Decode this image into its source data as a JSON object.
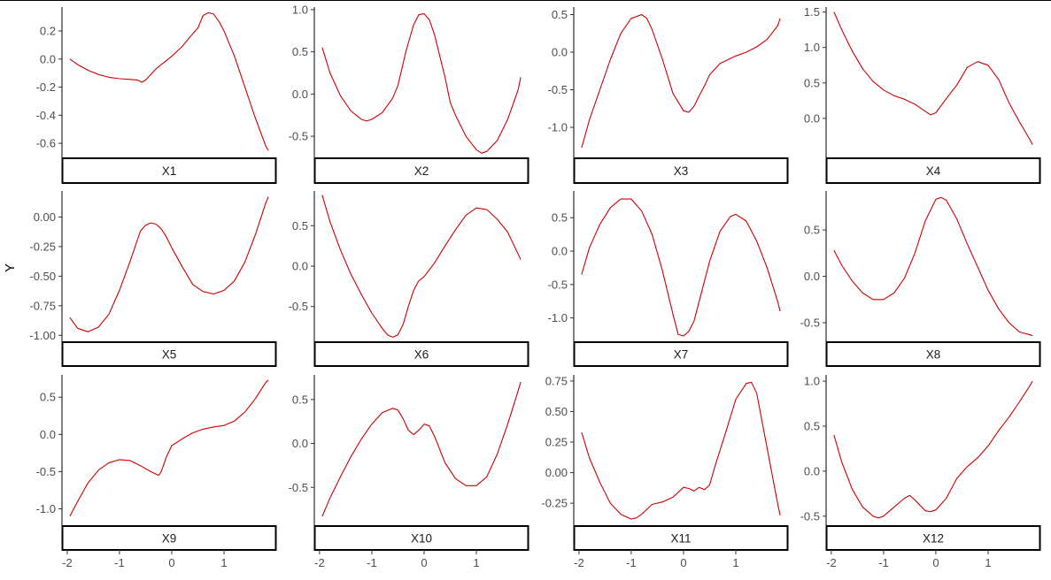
{
  "figure": {
    "ylabel": "Y",
    "line_color": "#CC0000",
    "strip_fill": "#FFFFFF",
    "strip_border": "#000000",
    "tick_color": "#4D4D4D",
    "x_ticks": [
      -2,
      -1,
      0,
      1
    ],
    "x_tick_labels": [
      "-2",
      "-1",
      "0",
      "1"
    ]
  },
  "chart_data": [
    {
      "type": "line",
      "title": "X1",
      "xlim": [
        -2.1,
        2.0
      ],
      "ylim": [
        -0.7,
        0.37
      ],
      "yticks": [
        0.2,
        0.0,
        -0.2,
        -0.4,
        -0.6
      ],
      "ytick_labels": [
        "0.2",
        "0.0",
        "-0.2",
        "-0.4",
        "-0.6"
      ],
      "x": [
        -1.95,
        -1.8,
        -1.6,
        -1.4,
        -1.2,
        -1.0,
        -0.8,
        -0.65,
        -0.57,
        -0.5,
        -0.4,
        -0.3,
        -0.2,
        -0.1,
        0.0,
        0.2,
        0.4,
        0.5,
        0.6,
        0.7,
        0.8,
        0.9,
        1.0,
        1.2,
        1.4,
        1.6,
        1.8,
        1.85
      ],
      "y": [
        0.0,
        -0.04,
        -0.08,
        -0.11,
        -0.13,
        -0.14,
        -0.145,
        -0.15,
        -0.165,
        -0.15,
        -0.11,
        -0.07,
        -0.04,
        -0.01,
        0.02,
        0.09,
        0.18,
        0.22,
        0.31,
        0.33,
        0.32,
        0.27,
        0.2,
        0.02,
        -0.2,
        -0.42,
        -0.62,
        -0.65
      ]
    },
    {
      "type": "line",
      "title": "X2",
      "xlim": [
        -2.1,
        2.0
      ],
      "ylim": [
        -0.75,
        1.03
      ],
      "yticks": [
        1.0,
        0.5,
        0.0,
        -0.5
      ],
      "ytick_labels": [
        "1.0",
        "0.5",
        "0.0",
        "-0.5"
      ],
      "x": [
        -1.95,
        -1.8,
        -1.6,
        -1.4,
        -1.2,
        -1.1,
        -1.0,
        -0.8,
        -0.6,
        -0.5,
        -0.35,
        -0.2,
        -0.1,
        0.0,
        0.1,
        0.2,
        0.4,
        0.5,
        0.6,
        0.8,
        1.0,
        1.1,
        1.2,
        1.4,
        1.6,
        1.8,
        1.85
      ],
      "y": [
        0.55,
        0.25,
        -0.02,
        -0.2,
        -0.3,
        -0.32,
        -0.3,
        -0.22,
        -0.05,
        0.1,
        0.5,
        0.82,
        0.94,
        0.95,
        0.88,
        0.7,
        0.2,
        -0.1,
        -0.25,
        -0.5,
        -0.66,
        -0.7,
        -0.68,
        -0.55,
        -0.3,
        0.05,
        0.2
      ]
    },
    {
      "type": "line",
      "title": "X3",
      "xlim": [
        -2.1,
        2.0
      ],
      "ylim": [
        -1.4,
        0.6
      ],
      "yticks": [
        0.5,
        0.0,
        -0.5,
        -1.0
      ],
      "ytick_labels": [
        "0.5",
        "0.0",
        "-0.5",
        "-1.0"
      ],
      "x": [
        -1.95,
        -1.8,
        -1.6,
        -1.4,
        -1.2,
        -1.0,
        -0.8,
        -0.7,
        -0.6,
        -0.4,
        -0.2,
        0.0,
        0.1,
        0.2,
        0.3,
        0.4,
        0.5,
        0.7,
        1.0,
        1.2,
        1.4,
        1.6,
        1.8,
        1.85
      ],
      "y": [
        -1.27,
        -0.9,
        -0.5,
        -0.1,
        0.25,
        0.45,
        0.5,
        0.45,
        0.3,
        -0.1,
        -0.55,
        -0.78,
        -0.8,
        -0.72,
        -0.58,
        -0.45,
        -0.3,
        -0.15,
        -0.05,
        0.0,
        0.07,
        0.17,
        0.35,
        0.45
      ]
    },
    {
      "type": "line",
      "title": "X4",
      "xlim": [
        -2.1,
        2.0
      ],
      "ylim": [
        -0.55,
        1.57
      ],
      "yticks": [
        1.5,
        1.0,
        0.5,
        0.0
      ],
      "ytick_labels": [
        "1.5",
        "1.0",
        "0.5",
        "0.0"
      ],
      "x": [
        -1.95,
        -1.8,
        -1.6,
        -1.4,
        -1.2,
        -1.0,
        -0.8,
        -0.6,
        -0.4,
        -0.2,
        -0.1,
        0.0,
        0.2,
        0.4,
        0.6,
        0.8,
        1.0,
        1.2,
        1.4,
        1.6,
        1.8,
        1.85
      ],
      "y": [
        1.5,
        1.25,
        0.95,
        0.7,
        0.52,
        0.4,
        0.32,
        0.27,
        0.2,
        0.1,
        0.05,
        0.08,
        0.28,
        0.47,
        0.72,
        0.8,
        0.75,
        0.55,
        0.22,
        -0.05,
        -0.3,
        -0.37
      ]
    },
    {
      "type": "line",
      "title": "X5",
      "xlim": [
        -2.1,
        2.0
      ],
      "ylim": [
        -1.05,
        0.22
      ],
      "yticks": [
        0.0,
        -0.25,
        -0.5,
        -0.75,
        -1.0
      ],
      "ytick_labels": [
        "0.00",
        "-0.25",
        "-0.50",
        "-0.75",
        "-1.00"
      ],
      "x": [
        -1.95,
        -1.8,
        -1.6,
        -1.4,
        -1.2,
        -1.0,
        -0.8,
        -0.6,
        -0.5,
        -0.4,
        -0.3,
        -0.2,
        -0.1,
        0.0,
        0.2,
        0.4,
        0.6,
        0.8,
        1.0,
        1.2,
        1.4,
        1.6,
        1.8,
        1.85
      ],
      "y": [
        -0.85,
        -0.94,
        -0.97,
        -0.93,
        -0.82,
        -0.62,
        -0.38,
        -0.12,
        -0.07,
        -0.05,
        -0.06,
        -0.1,
        -0.17,
        -0.26,
        -0.42,
        -0.57,
        -0.63,
        -0.65,
        -0.62,
        -0.54,
        -0.38,
        -0.15,
        0.12,
        0.17
      ]
    },
    {
      "type": "line",
      "title": "X6",
      "xlim": [
        -2.1,
        2.0
      ],
      "ylim": [
        -0.93,
        0.93
      ],
      "yticks": [
        0.5,
        0.0,
        -0.5
      ],
      "ytick_labels": [
        "0.5",
        "0.0",
        "-0.5"
      ],
      "x": [
        -1.95,
        -1.8,
        -1.6,
        -1.4,
        -1.2,
        -1.0,
        -0.8,
        -0.7,
        -0.6,
        -0.5,
        -0.4,
        -0.3,
        -0.2,
        -0.1,
        0.0,
        0.2,
        0.4,
        0.6,
        0.8,
        1.0,
        1.2,
        1.4,
        1.6,
        1.8,
        1.85
      ],
      "y": [
        0.88,
        0.55,
        0.2,
        -0.1,
        -0.35,
        -0.58,
        -0.77,
        -0.85,
        -0.88,
        -0.85,
        -0.72,
        -0.5,
        -0.3,
        -0.18,
        -0.13,
        0.04,
        0.25,
        0.45,
        0.63,
        0.72,
        0.7,
        0.58,
        0.42,
        0.15,
        0.08
      ]
    },
    {
      "type": "line",
      "title": "X7",
      "xlim": [
        -2.1,
        2.0
      ],
      "ylim": [
        -1.35,
        0.9
      ],
      "yticks": [
        0.5,
        0.0,
        -0.5,
        -1.0
      ],
      "ytick_labels": [
        "0.5",
        "0.0",
        "-0.5",
        "-1.0"
      ],
      "x": [
        -1.95,
        -1.8,
        -1.6,
        -1.4,
        -1.2,
        -1.0,
        -0.8,
        -0.6,
        -0.4,
        -0.2,
        -0.1,
        0.0,
        0.1,
        0.2,
        0.3,
        0.5,
        0.7,
        0.9,
        1.0,
        1.2,
        1.4,
        1.6,
        1.8,
        1.85
      ],
      "y": [
        -0.35,
        0.05,
        0.4,
        0.65,
        0.78,
        0.78,
        0.6,
        0.25,
        -0.3,
        -0.95,
        -1.25,
        -1.27,
        -1.2,
        -1.05,
        -0.75,
        -0.15,
        0.3,
        0.52,
        0.55,
        0.45,
        0.15,
        -0.25,
        -0.75,
        -0.9
      ]
    },
    {
      "type": "line",
      "title": "X8",
      "xlim": [
        -2.1,
        2.0
      ],
      "ylim": [
        -0.7,
        0.92
      ],
      "yticks": [
        0.5,
        0.0,
        -0.5
      ],
      "ytick_labels": [
        "0.5",
        "0.0",
        "-0.5"
      ],
      "x": [
        -1.95,
        -1.8,
        -1.6,
        -1.4,
        -1.2,
        -1.0,
        -0.8,
        -0.6,
        -0.4,
        -0.2,
        0.0,
        0.1,
        0.2,
        0.4,
        0.6,
        0.8,
        1.0,
        1.2,
        1.4,
        1.6,
        1.8,
        1.85
      ],
      "y": [
        0.28,
        0.12,
        -0.05,
        -0.18,
        -0.25,
        -0.25,
        -0.18,
        -0.02,
        0.25,
        0.6,
        0.83,
        0.85,
        0.82,
        0.62,
        0.35,
        0.1,
        -0.15,
        -0.35,
        -0.5,
        -0.6,
        -0.63,
        -0.64
      ]
    },
    {
      "type": "line",
      "title": "X9",
      "xlim": [
        -2.1,
        2.0
      ],
      "ylim": [
        -1.22,
        0.8
      ],
      "yticks": [
        0.5,
        0.0,
        -0.5,
        -1.0
      ],
      "ytick_labels": [
        "0.5",
        "0.0",
        "-0.5",
        "-1.0"
      ],
      "x": [
        -1.95,
        -1.8,
        -1.6,
        -1.4,
        -1.2,
        -1.0,
        -0.8,
        -0.6,
        -0.4,
        -0.25,
        -0.2,
        -0.1,
        0.0,
        0.2,
        0.4,
        0.6,
        0.8,
        1.0,
        1.2,
        1.4,
        1.6,
        1.8,
        1.85
      ],
      "y": [
        -1.1,
        -0.9,
        -0.65,
        -0.48,
        -0.38,
        -0.34,
        -0.35,
        -0.42,
        -0.5,
        -0.55,
        -0.5,
        -0.3,
        -0.15,
        -0.06,
        0.02,
        0.07,
        0.1,
        0.12,
        0.18,
        0.3,
        0.48,
        0.7,
        0.73
      ]
    },
    {
      "type": "line",
      "title": "X10",
      "xlim": [
        -2.1,
        2.0
      ],
      "ylim": [
        -0.93,
        0.78
      ],
      "yticks": [
        0.5,
        0.0,
        -0.5
      ],
      "ytick_labels": [
        "0.5",
        "0.0",
        "-0.5"
      ],
      "x": [
        -1.95,
        -1.8,
        -1.6,
        -1.4,
        -1.2,
        -1.0,
        -0.8,
        -0.6,
        -0.5,
        -0.4,
        -0.3,
        -0.2,
        -0.1,
        0.0,
        0.1,
        0.2,
        0.4,
        0.6,
        0.8,
        1.0,
        1.2,
        1.4,
        1.6,
        1.8,
        1.85
      ],
      "y": [
        -0.83,
        -0.62,
        -0.38,
        -0.15,
        0.05,
        0.22,
        0.35,
        0.4,
        0.38,
        0.28,
        0.15,
        0.1,
        0.15,
        0.22,
        0.2,
        0.08,
        -0.22,
        -0.4,
        -0.48,
        -0.48,
        -0.38,
        -0.12,
        0.22,
        0.6,
        0.7
      ]
    },
    {
      "type": "line",
      "title": "X11",
      "xlim": [
        -2.1,
        2.0
      ],
      "ylim": [
        -0.43,
        0.8
      ],
      "yticks": [
        0.75,
        0.5,
        0.25,
        0.0,
        -0.25
      ],
      "ytick_labels": [
        "0.75",
        "0.50",
        "0.25",
        "0.00",
        "-0.25"
      ],
      "x": [
        -1.95,
        -1.8,
        -1.6,
        -1.4,
        -1.2,
        -1.0,
        -0.9,
        -0.8,
        -0.6,
        -0.4,
        -0.2,
        0.0,
        0.1,
        0.2,
        0.3,
        0.4,
        0.5,
        0.6,
        0.8,
        1.0,
        1.2,
        1.3,
        1.4,
        1.6,
        1.8,
        1.85
      ],
      "y": [
        0.33,
        0.12,
        -0.08,
        -0.25,
        -0.34,
        -0.38,
        -0.37,
        -0.34,
        -0.26,
        -0.24,
        -0.2,
        -0.12,
        -0.13,
        -0.15,
        -0.12,
        -0.14,
        -0.1,
        0.05,
        0.32,
        0.6,
        0.73,
        0.74,
        0.65,
        0.2,
        -0.25,
        -0.35
      ]
    },
    {
      "type": "line",
      "title": "X12",
      "xlim": [
        -2.1,
        2.0
      ],
      "ylim": [
        -0.6,
        1.07
      ],
      "yticks": [
        1.0,
        0.5,
        0.0,
        -0.5
      ],
      "ytick_labels": [
        "1.0",
        "0.5",
        "0.0",
        "-0.5"
      ],
      "x": [
        -1.95,
        -1.8,
        -1.6,
        -1.4,
        -1.2,
        -1.1,
        -1.0,
        -0.8,
        -0.6,
        -0.5,
        -0.4,
        -0.2,
        -0.1,
        0.0,
        0.2,
        0.4,
        0.6,
        0.8,
        1.0,
        1.2,
        1.4,
        1.6,
        1.8,
        1.85
      ],
      "y": [
        0.4,
        0.1,
        -0.2,
        -0.4,
        -0.5,
        -0.52,
        -0.5,
        -0.4,
        -0.3,
        -0.27,
        -0.32,
        -0.44,
        -0.45,
        -0.43,
        -0.3,
        -0.08,
        0.05,
        0.15,
        0.28,
        0.45,
        0.6,
        0.77,
        0.95,
        1.0
      ]
    }
  ]
}
